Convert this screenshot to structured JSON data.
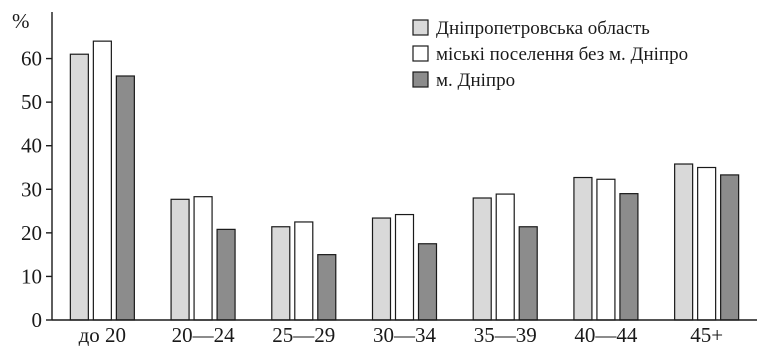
{
  "chart_data": {
    "type": "bar",
    "ylabel": "%",
    "ylim": [
      0,
      70
    ],
    "yticks": [
      0,
      10,
      20,
      30,
      40,
      50,
      60
    ],
    "grid": false,
    "legend_position": "top-right",
    "categories": [
      "до 20",
      "20—24",
      "25—29",
      "30—34",
      "35—39",
      "40—44",
      "45+"
    ],
    "series": [
      {
        "name": "Дніпропетровська область",
        "color": "#d9d9d9",
        "values": [
          61.0,
          27.7,
          21.4,
          23.4,
          28.0,
          32.7,
          35.8
        ]
      },
      {
        "name": "міські поселення без м. Дніпро",
        "color": "#ffffff",
        "values": [
          64.0,
          28.3,
          22.5,
          24.2,
          28.9,
          32.3,
          35.0
        ]
      },
      {
        "name": "м. Дніпро",
        "color": "#8c8c8c",
        "values": [
          56.0,
          20.8,
          15.0,
          17.5,
          21.4,
          29.0,
          33.3
        ]
      }
    ]
  }
}
